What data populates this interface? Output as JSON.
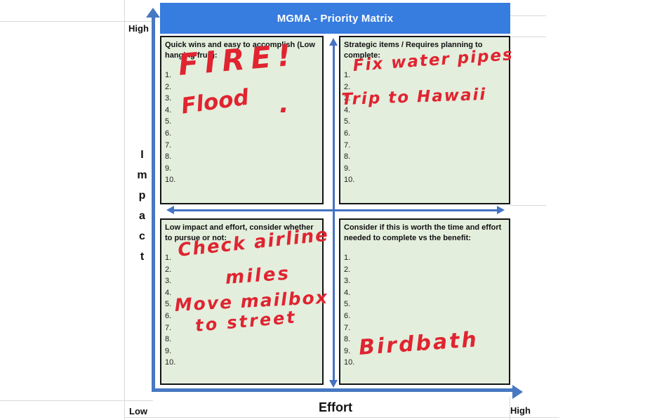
{
  "title": "MGMA - Priority Matrix",
  "colors": {
    "title_bar": "#377CDF",
    "quadrant_bg": "#E3EEDD",
    "quadrant_border": "#141414",
    "axis_blue": "#4778C2",
    "mid_arrow_blue": "#4472C4",
    "ink_red": "#E02430",
    "gridline": "#D9D9D9"
  },
  "axes": {
    "y_label": "Impact",
    "x_label": "Effort",
    "y_high": "High",
    "x_high": "High",
    "origin_low": "Low"
  },
  "quadrants": {
    "top_left": {
      "header": "Quick wins and easy to accomplish (Low hanging fruit):",
      "numbers": [
        "1.",
        "2.",
        "3.",
        "4.",
        "5.",
        "6.",
        "7.",
        "8.",
        "9.",
        "10."
      ],
      "notes": [
        "FIRE!",
        "Flood",
        "."
      ]
    },
    "top_right": {
      "header": "Strategic items / Requires planning to complete:",
      "numbers": [
        "1.",
        "2.",
        "3.",
        "4.",
        "5.",
        "6.",
        "7.",
        "8.",
        "9.",
        "10."
      ],
      "notes": [
        "Fix water pipes",
        "Trip to Hawaii"
      ]
    },
    "bottom_left": {
      "header": "Low impact and effort, consider whether to pursue or not:",
      "numbers": [
        "1.",
        "2.",
        "3.",
        "4.",
        "5.",
        "6.",
        "7.",
        "8.",
        "9.",
        "10."
      ],
      "notes": [
        "Check airline",
        "miles",
        "Move mailbox",
        "to street"
      ]
    },
    "bottom_right": {
      "header": "Consider if this is worth the time and effort needed to complete vs the benefit:",
      "numbers": [
        "1.",
        "2.",
        "3.",
        "4.",
        "5.",
        "6.",
        "7.",
        "8.",
        "9.",
        "10."
      ],
      "notes": [
        "Birdbath"
      ]
    }
  }
}
